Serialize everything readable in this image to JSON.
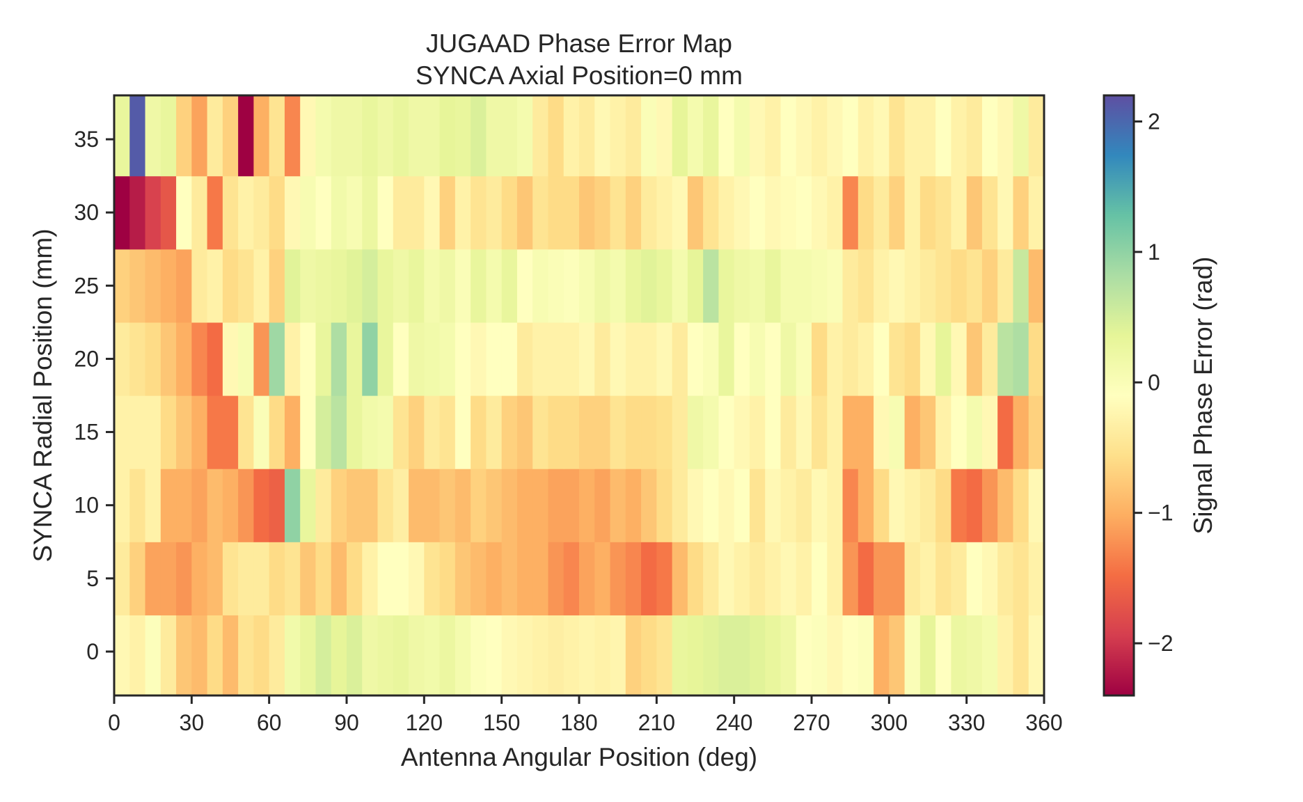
{
  "chart_data": {
    "type": "heatmap",
    "title": [
      "JUGAAD Phase Error Map",
      "SYNCA Axial Position=0 mm"
    ],
    "xlabel": "Antenna Angular Position (deg)",
    "ylabel": "SYNCA Radial Position (mm)",
    "colorbar_label": "Signal Phase Error (rad)",
    "xlim": [
      0,
      360
    ],
    "ylim": [
      -3,
      38
    ],
    "x_ticks": [
      0,
      30,
      60,
      90,
      120,
      150,
      180,
      210,
      240,
      270,
      300,
      330,
      360
    ],
    "y_ticks": [
      0,
      5,
      10,
      15,
      20,
      25,
      30,
      35
    ],
    "colorbar_ticks": [
      -2,
      -1,
      0,
      1,
      2
    ],
    "colorbar_range": [
      -2.4,
      2.2
    ],
    "colormap": "Spectral",
    "grid": false,
    "x_bin_width_deg": 6,
    "y_centers_mm": [
      0,
      5,
      10,
      15,
      20,
      25,
      30,
      35
    ],
    "values": [
      [
        -0.2,
        -0.3,
        -0.05,
        -0.4,
        -0.8,
        -0.9,
        -0.6,
        -0.9,
        -0.5,
        -0.6,
        -0.4,
        0.15,
        0.3,
        0.5,
        0.35,
        0.45,
        0.2,
        0.25,
        0.3,
        0.2,
        0.15,
        0.25,
        0.1,
        -0.05,
        -0.1,
        -0.2,
        -0.25,
        -0.3,
        -0.35,
        -0.3,
        -0.25,
        -0.3,
        -0.25,
        -0.7,
        -0.6,
        -0.5,
        0.3,
        0.35,
        0.4,
        0.45,
        0.45,
        0.4,
        0.3,
        0.2,
        -0.1,
        -0.05,
        -0.2,
        -0.1,
        -0.05,
        -1.0,
        -0.8,
        0.0,
        0.35,
        -0.1,
        0.25,
        0.2,
        0.1,
        -0.3,
        -0.5,
        -0.2
      ],
      [
        -0.4,
        -0.7,
        -1.1,
        -1.1,
        -1.2,
        -1.0,
        -0.9,
        -0.5,
        -0.4,
        -0.4,
        -0.6,
        -0.5,
        -0.8,
        -0.6,
        -0.9,
        -0.6,
        -0.3,
        -0.1,
        -0.1,
        -0.2,
        -0.5,
        -0.6,
        -0.8,
        -0.9,
        -1.0,
        -0.9,
        -1.0,
        -1.0,
        -1.2,
        -1.3,
        -1.1,
        -1.0,
        -1.2,
        -1.3,
        -1.5,
        -1.4,
        -0.9,
        -0.6,
        -0.4,
        -0.2,
        -0.3,
        -0.4,
        -0.3,
        -0.2,
        -0.3,
        -0.1,
        -0.3,
        -1.2,
        -1.5,
        -1.2,
        -1.2,
        -0.4,
        -0.3,
        -0.5,
        -0.4,
        -0.1,
        -0.2,
        -0.4,
        -0.5,
        -0.3
      ],
      [
        -0.3,
        -0.5,
        -0.3,
        -1.0,
        -1.0,
        -1.1,
        -0.9,
        -1.0,
        -1.2,
        -1.5,
        -1.6,
        1.0,
        0.3,
        -0.4,
        -0.7,
        -0.8,
        -0.8,
        -0.5,
        -0.35,
        -0.9,
        -0.9,
        -0.8,
        -0.9,
        -0.7,
        -0.8,
        -0.9,
        -1.0,
        -1.0,
        -1.1,
        -1.1,
        -1.0,
        -1.1,
        -0.9,
        -1.0,
        -0.8,
        -0.6,
        -0.4,
        -0.2,
        -0.1,
        -0.2,
        -0.1,
        -0.5,
        -0.2,
        -0.3,
        -0.4,
        -0.2,
        -0.3,
        -1.3,
        -1.0,
        -0.6,
        -0.2,
        -0.3,
        -0.4,
        -0.6,
        -1.4,
        -1.5,
        -1.2,
        -0.9,
        -0.6,
        -0.2
      ],
      [
        -0.3,
        -0.3,
        -0.3,
        -0.6,
        -0.8,
        -1.0,
        -1.4,
        -1.4,
        -0.5,
        0.0,
        -0.6,
        -1.0,
        -0.1,
        0.5,
        0.7,
        0.3,
        0.15,
        0.1,
        -0.5,
        -0.7,
        -0.4,
        -0.5,
        -0.1,
        -0.6,
        -0.4,
        -0.7,
        -0.8,
        -0.5,
        -0.6,
        -0.6,
        -0.7,
        -0.7,
        -0.5,
        -0.6,
        -0.6,
        -0.55,
        -0.4,
        0.2,
        0.1,
        -0.1,
        -0.2,
        -0.3,
        -0.1,
        -0.4,
        -0.2,
        -0.5,
        -0.3,
        -1.0,
        -1.0,
        -0.2,
        0.05,
        -1.0,
        -0.8,
        -0.3,
        -0.1,
        0.1,
        -0.2,
        -1.5,
        -1.0,
        -0.7
      ],
      [
        -0.4,
        -0.5,
        -0.6,
        -0.8,
        -1.0,
        -1.3,
        -1.5,
        -0.2,
        0.05,
        -1.2,
        0.9,
        -0.3,
        -0.1,
        0.3,
        0.8,
        0.3,
        1.0,
        0.3,
        -0.1,
        0.2,
        0.15,
        0.1,
        -0.1,
        -0.2,
        -0.1,
        -0.1,
        -0.4,
        -0.3,
        -0.3,
        -0.3,
        -0.2,
        -0.4,
        -0.2,
        -0.3,
        -0.3,
        -0.2,
        -0.4,
        -0.1,
        0.0,
        0.3,
        -0.1,
        0.05,
        -0.1,
        0.2,
        0.0,
        -0.6,
        -0.3,
        -0.4,
        -0.3,
        -0.1,
        -0.5,
        -0.6,
        -0.2,
        0.35,
        -0.2,
        -0.8,
        -0.4,
        0.7,
        0.8,
        -0.6
      ],
      [
        -0.7,
        -0.8,
        -0.9,
        -1.0,
        -1.1,
        -0.4,
        -0.3,
        -0.6,
        -0.5,
        -0.3,
        -0.7,
        0.4,
        0.2,
        0.25,
        0.3,
        0.4,
        0.5,
        0.3,
        0.2,
        0.3,
        0.1,
        0.2,
        0.0,
        0.3,
        0.1,
        0.3,
        -0.1,
        0.05,
        0.0,
        -0.05,
        0.05,
        0.2,
        0.1,
        0.3,
        0.4,
        0.3,
        0.1,
        0.35,
        0.7,
        0.3,
        0.2,
        0.15,
        0.3,
        0.1,
        0.1,
        0.05,
        0.0,
        -0.4,
        -0.5,
        -0.3,
        -0.2,
        -0.3,
        -0.4,
        -0.5,
        -0.6,
        -0.5,
        -0.7,
        -0.4,
        0.6,
        -0.9
      ],
      [
        -2.4,
        -2.2,
        -1.9,
        -1.7,
        -0.1,
        -0.4,
        -1.4,
        -0.5,
        -0.3,
        -0.4,
        -0.6,
        -0.2,
        0.05,
        -0.1,
        0.15,
        0.05,
        0.25,
        -0.1,
        -0.4,
        -0.4,
        -0.2,
        -0.7,
        -0.3,
        -0.5,
        -0.4,
        -0.6,
        -0.8,
        -0.5,
        -0.6,
        -0.6,
        -0.8,
        -0.7,
        -0.5,
        -0.7,
        -0.4,
        -0.3,
        -0.2,
        -0.8,
        -0.5,
        -0.3,
        -0.2,
        -0.1,
        -0.2,
        -0.15,
        -0.1,
        -0.2,
        -0.3,
        -1.3,
        -0.6,
        -0.4,
        -0.7,
        -0.3,
        -0.6,
        -0.5,
        -0.3,
        -0.8,
        -0.5,
        -0.2,
        -0.7,
        -0.3
      ],
      [
        0.3,
        2.1,
        0.2,
        0.3,
        -0.7,
        -1.1,
        -0.4,
        -0.7,
        -2.5,
        -1.0,
        -0.5,
        -1.3,
        -0.2,
        0.1,
        0.2,
        0.2,
        0.3,
        0.2,
        0.3,
        0.2,
        0.2,
        0.35,
        0.3,
        0.45,
        0.2,
        0.2,
        0.1,
        -0.4,
        -0.6,
        -0.3,
        -0.4,
        -0.2,
        -0.3,
        -0.4,
        0.0,
        -0.2,
        0.35,
        0.1,
        0.3,
        -0.1,
        0.1,
        -0.2,
        -0.3,
        -0.1,
        -0.2,
        -0.3,
        -0.2,
        -0.1,
        -0.3,
        -0.2,
        -0.5,
        -0.3,
        -0.3,
        -0.1,
        -0.3,
        -0.4,
        -0.1,
        -0.2,
        0.2,
        -0.4
      ]
    ]
  }
}
